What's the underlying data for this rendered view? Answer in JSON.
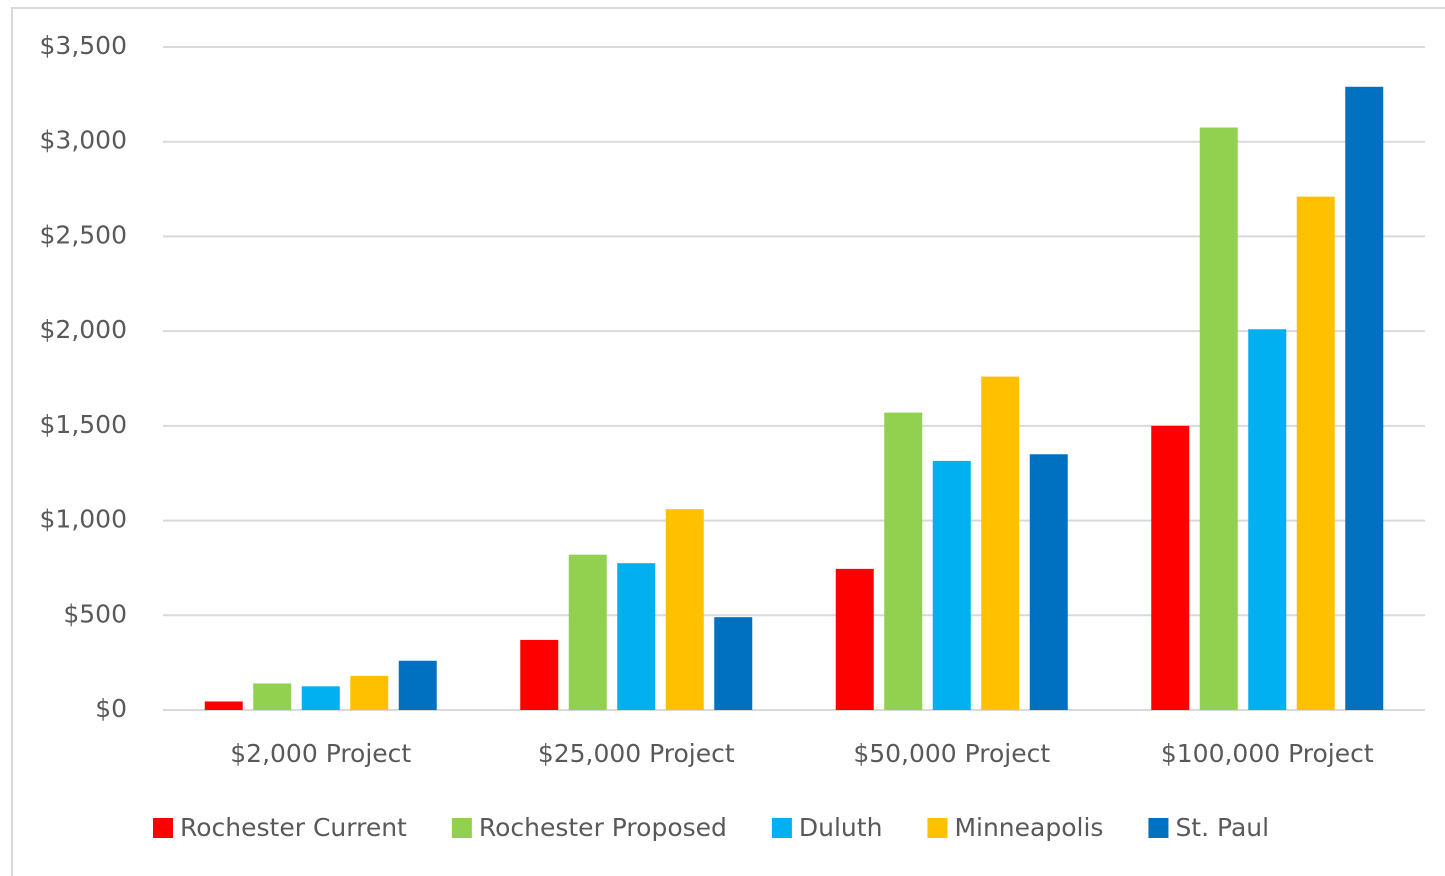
{
  "chart_data": {
    "type": "bar",
    "categories": [
      "$2,000 Project",
      "$25,000 Project",
      "$50,000 Project",
      "$100,000 Project"
    ],
    "series": [
      {
        "name": "Rochester Current",
        "color": "#ff0000",
        "values": [
          45,
          370,
          745,
          1500
        ]
      },
      {
        "name": "Rochester Proposed",
        "color": "#92d050",
        "values": [
          140,
          820,
          1570,
          3075
        ]
      },
      {
        "name": "Duluth",
        "color": "#00b0f0",
        "values": [
          125,
          775,
          1315,
          2010
        ]
      },
      {
        "name": "Minneapolis",
        "color": "#ffc000",
        "values": [
          180,
          1060,
          1760,
          2710
        ]
      },
      {
        "name": "St. Paul",
        "color": "#0070c0",
        "values": [
          260,
          490,
          1350,
          3290
        ]
      }
    ],
    "ylim": [
      0,
      3500
    ],
    "yticks": [
      {
        "value": 0,
        "label": "$0"
      },
      {
        "value": 500,
        "label": "$500"
      },
      {
        "value": 1000,
        "label": "$1,000"
      },
      {
        "value": 1500,
        "label": "$1,500"
      },
      {
        "value": 2000,
        "label": "$2,000"
      },
      {
        "value": 2500,
        "label": "$2,500"
      },
      {
        "value": 3000,
        "label": "$3,000"
      },
      {
        "value": 3500,
        "label": "$3,500"
      }
    ],
    "grid": true,
    "legend": "bottom"
  }
}
